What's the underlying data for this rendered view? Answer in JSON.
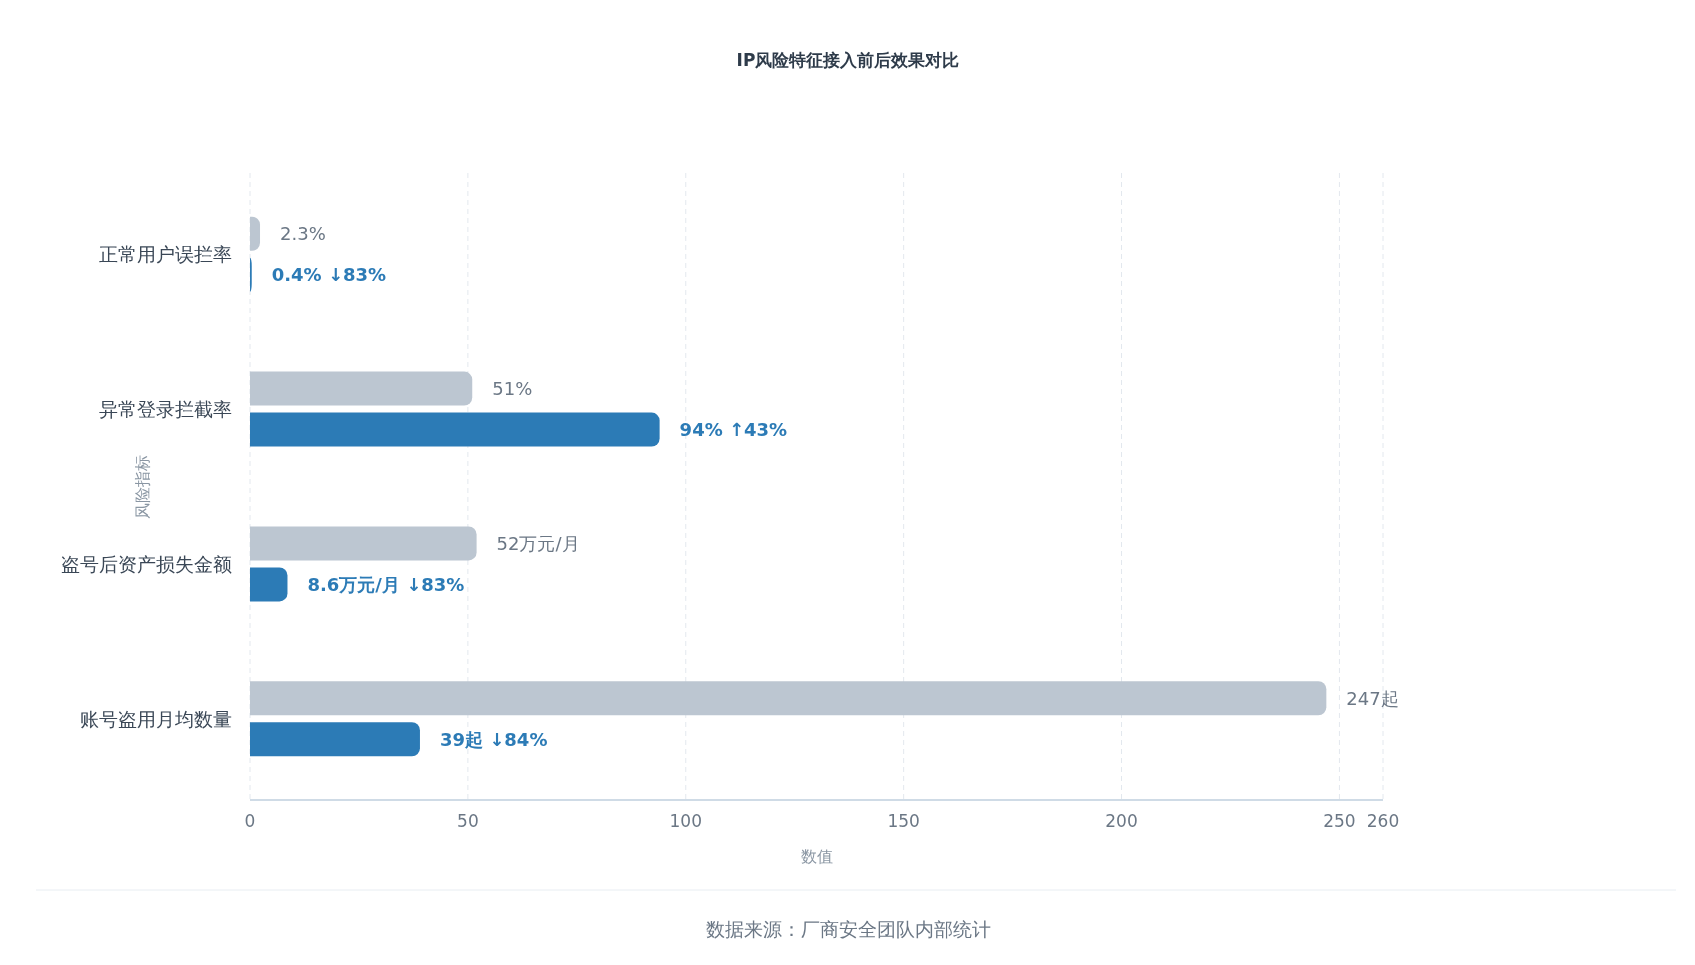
{
  "chart_data": {
    "type": "bar",
    "orientation": "horizontal",
    "title": "IP风险特征接入前后效果对比",
    "xlabel": "数值",
    "ylabel": "风险指标",
    "categories": [
      "正常用户误拦率",
      "异常登录拦截率",
      "盗号后资产损失金额",
      "账号盗用月均数量"
    ],
    "series": [
      {
        "color": "#bcc6d1",
        "values": [
          2.3,
          51,
          52,
          247
        ],
        "value_labels": [
          "2.3%",
          "51%",
          "52万元/月",
          "247起"
        ]
      },
      {
        "color": "#2c7bb6",
        "values": [
          0.4,
          94,
          8.6,
          39
        ],
        "value_labels": [
          "0.4%  ↓83%",
          "94%  ↑43%",
          "8.6万元/月  ↓83%",
          "39起  ↓84%"
        ]
      }
    ],
    "xlim": [
      0,
      260
    ],
    "xticks": [
      0,
      50,
      100,
      150,
      200,
      250,
      260
    ],
    "grid": "x",
    "annotations": [
      "数据来源：厂商安全团队内部统计"
    ]
  }
}
